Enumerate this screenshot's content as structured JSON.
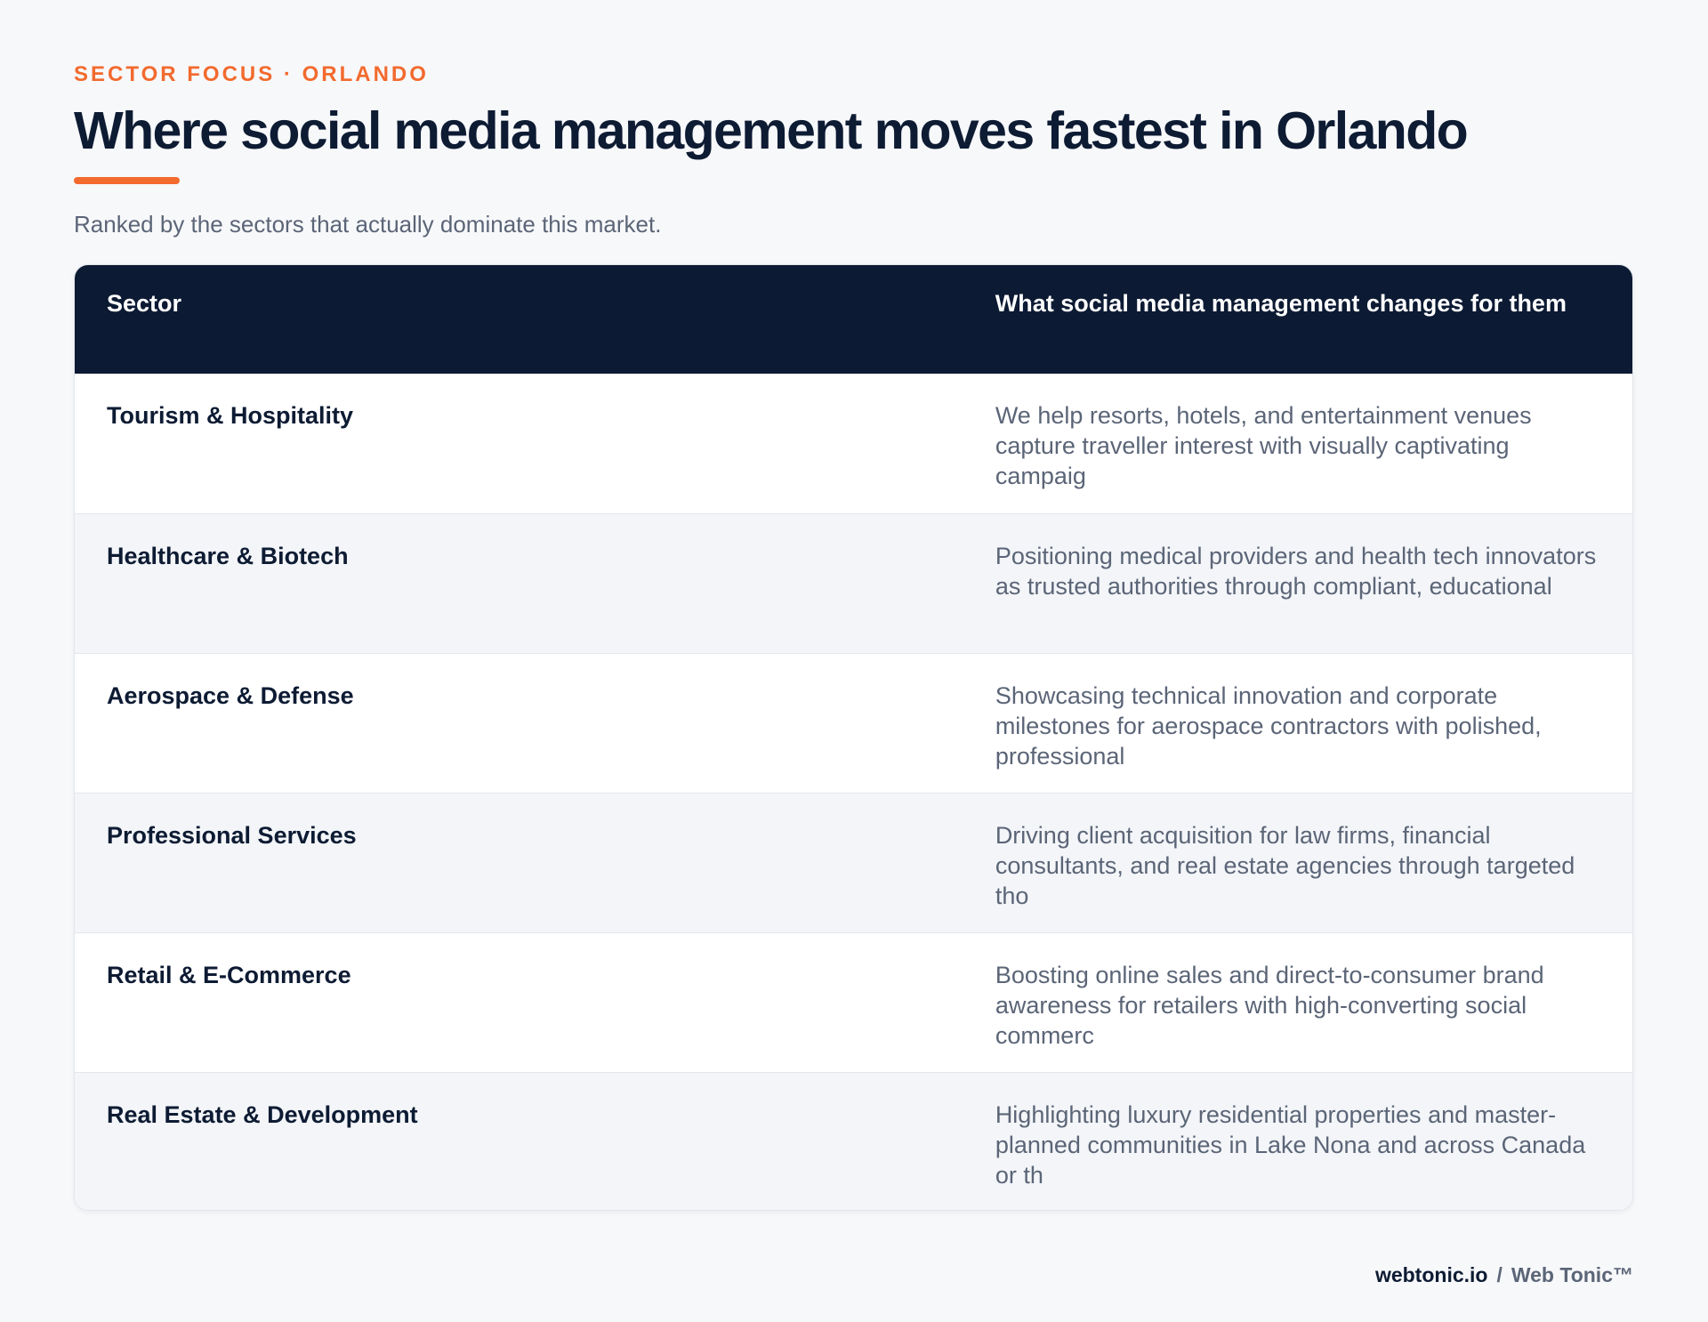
{
  "header": {
    "eyebrow": "SECTOR FOCUS · ORLANDO",
    "title": "Where social media management moves fastest in Orlando",
    "subtitle": "Ranked by the sectors that actually dominate this market."
  },
  "table": {
    "columns": [
      "Sector",
      "What social media management changes for them"
    ],
    "rows": [
      {
        "sector": "Tourism & Hospitality",
        "description": "We help resorts, hotels, and entertainment venues capture traveller interest with visually captivating campaig"
      },
      {
        "sector": "Healthcare & Biotech",
        "description": "Positioning medical providers and health tech innovators as trusted authorities through compliant, educational"
      },
      {
        "sector": "Aerospace & Defense",
        "description": "Showcasing technical innovation and corporate milestones for aerospace contractors with polished, professional"
      },
      {
        "sector": "Professional Services",
        "description": "Driving client acquisition for law firms, financial consultants, and real estate agencies through targeted tho"
      },
      {
        "sector": "Retail & E-Commerce",
        "description": "Boosting online sales and direct-to-consumer brand awareness for retailers with high-converting social commerc"
      },
      {
        "sector": "Real Estate & Development",
        "description": "Highlighting luxury residential properties and master-planned communities in Lake Nona and across Canada or th"
      }
    ]
  },
  "footer": {
    "domain": "webtonic.io",
    "separator": "/",
    "brand": "Web Tonic™"
  },
  "colors": {
    "accent": "#f26a2e",
    "navy": "#0c1a33",
    "muted": "#5b6577"
  }
}
